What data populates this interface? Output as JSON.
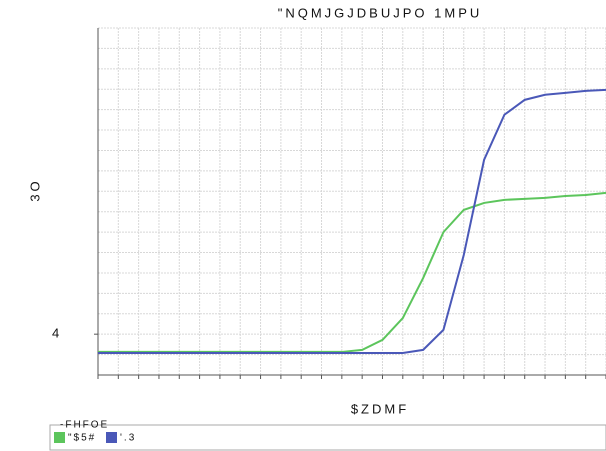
{
  "chart_data": {
    "type": "line",
    "title": "\"NQMJGJDBUJPO 1MPU",
    "x_label": "$ZDMF",
    "y_label": "3O",
    "legend_title": "-FHFOE",
    "xlim": [
      0,
      25
    ],
    "ylim": [
      0,
      17
    ],
    "yticks": [
      {
        "value": 2,
        "label": "4"
      }
    ],
    "grid": true,
    "x": [
      0,
      1,
      2,
      3,
      4,
      5,
      6,
      7,
      8,
      9,
      10,
      11,
      12,
      13,
      14,
      15,
      16,
      17,
      18,
      19,
      20,
      21,
      22,
      23,
      24,
      25
    ],
    "series": [
      {
        "name": "\"$5#",
        "color": "#5cc55c",
        "values": [
          1.13,
          1.13,
          1.13,
          1.13,
          1.13,
          1.13,
          1.13,
          1.13,
          1.13,
          1.13,
          1.13,
          1.13,
          1.13,
          1.23,
          1.72,
          2.79,
          4.75,
          7.0,
          8.09,
          8.43,
          8.58,
          8.63,
          8.68,
          8.77,
          8.82,
          8.92
        ]
      },
      {
        "name": "'.3",
        "color": "#4a58b8",
        "values": [
          1.08,
          1.08,
          1.08,
          1.08,
          1.08,
          1.08,
          1.08,
          1.08,
          1.08,
          1.08,
          1.08,
          1.08,
          1.08,
          1.08,
          1.08,
          1.08,
          1.23,
          2.21,
          5.88,
          10.54,
          12.75,
          13.48,
          13.73,
          13.82,
          13.92,
          13.97
        ]
      }
    ]
  }
}
